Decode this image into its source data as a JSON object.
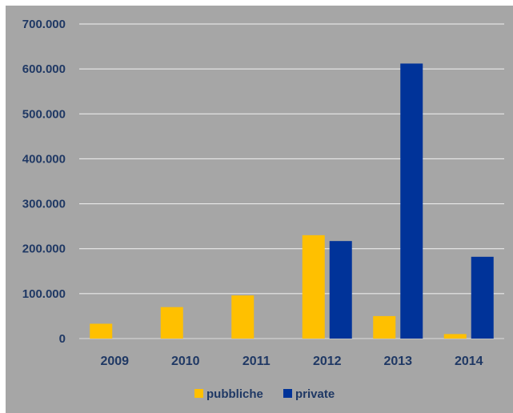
{
  "chart_data": {
    "type": "bar",
    "categories": [
      "2009",
      "2010",
      "2011",
      "2012",
      "2013",
      "2014"
    ],
    "series": [
      {
        "name": "pubbliche",
        "color": "#ffc000",
        "values": [
          33000,
          70000,
          96000,
          230000,
          50000,
          10000
        ]
      },
      {
        "name": "private",
        "color": "#003399",
        "values": [
          0,
          0,
          0,
          217000,
          612000,
          182000
        ]
      }
    ],
    "ylim": [
      0,
      700000
    ],
    "yticks": [
      0,
      100000,
      200000,
      300000,
      400000,
      500000,
      600000,
      700000
    ],
    "ytick_labels": [
      "0",
      "100.000",
      "200.000",
      "300.000",
      "400.000",
      "500.000",
      "600.000",
      "700.000"
    ],
    "grid": true,
    "legend_position": "bottom",
    "title": "",
    "xlabel": "",
    "ylabel": ""
  }
}
